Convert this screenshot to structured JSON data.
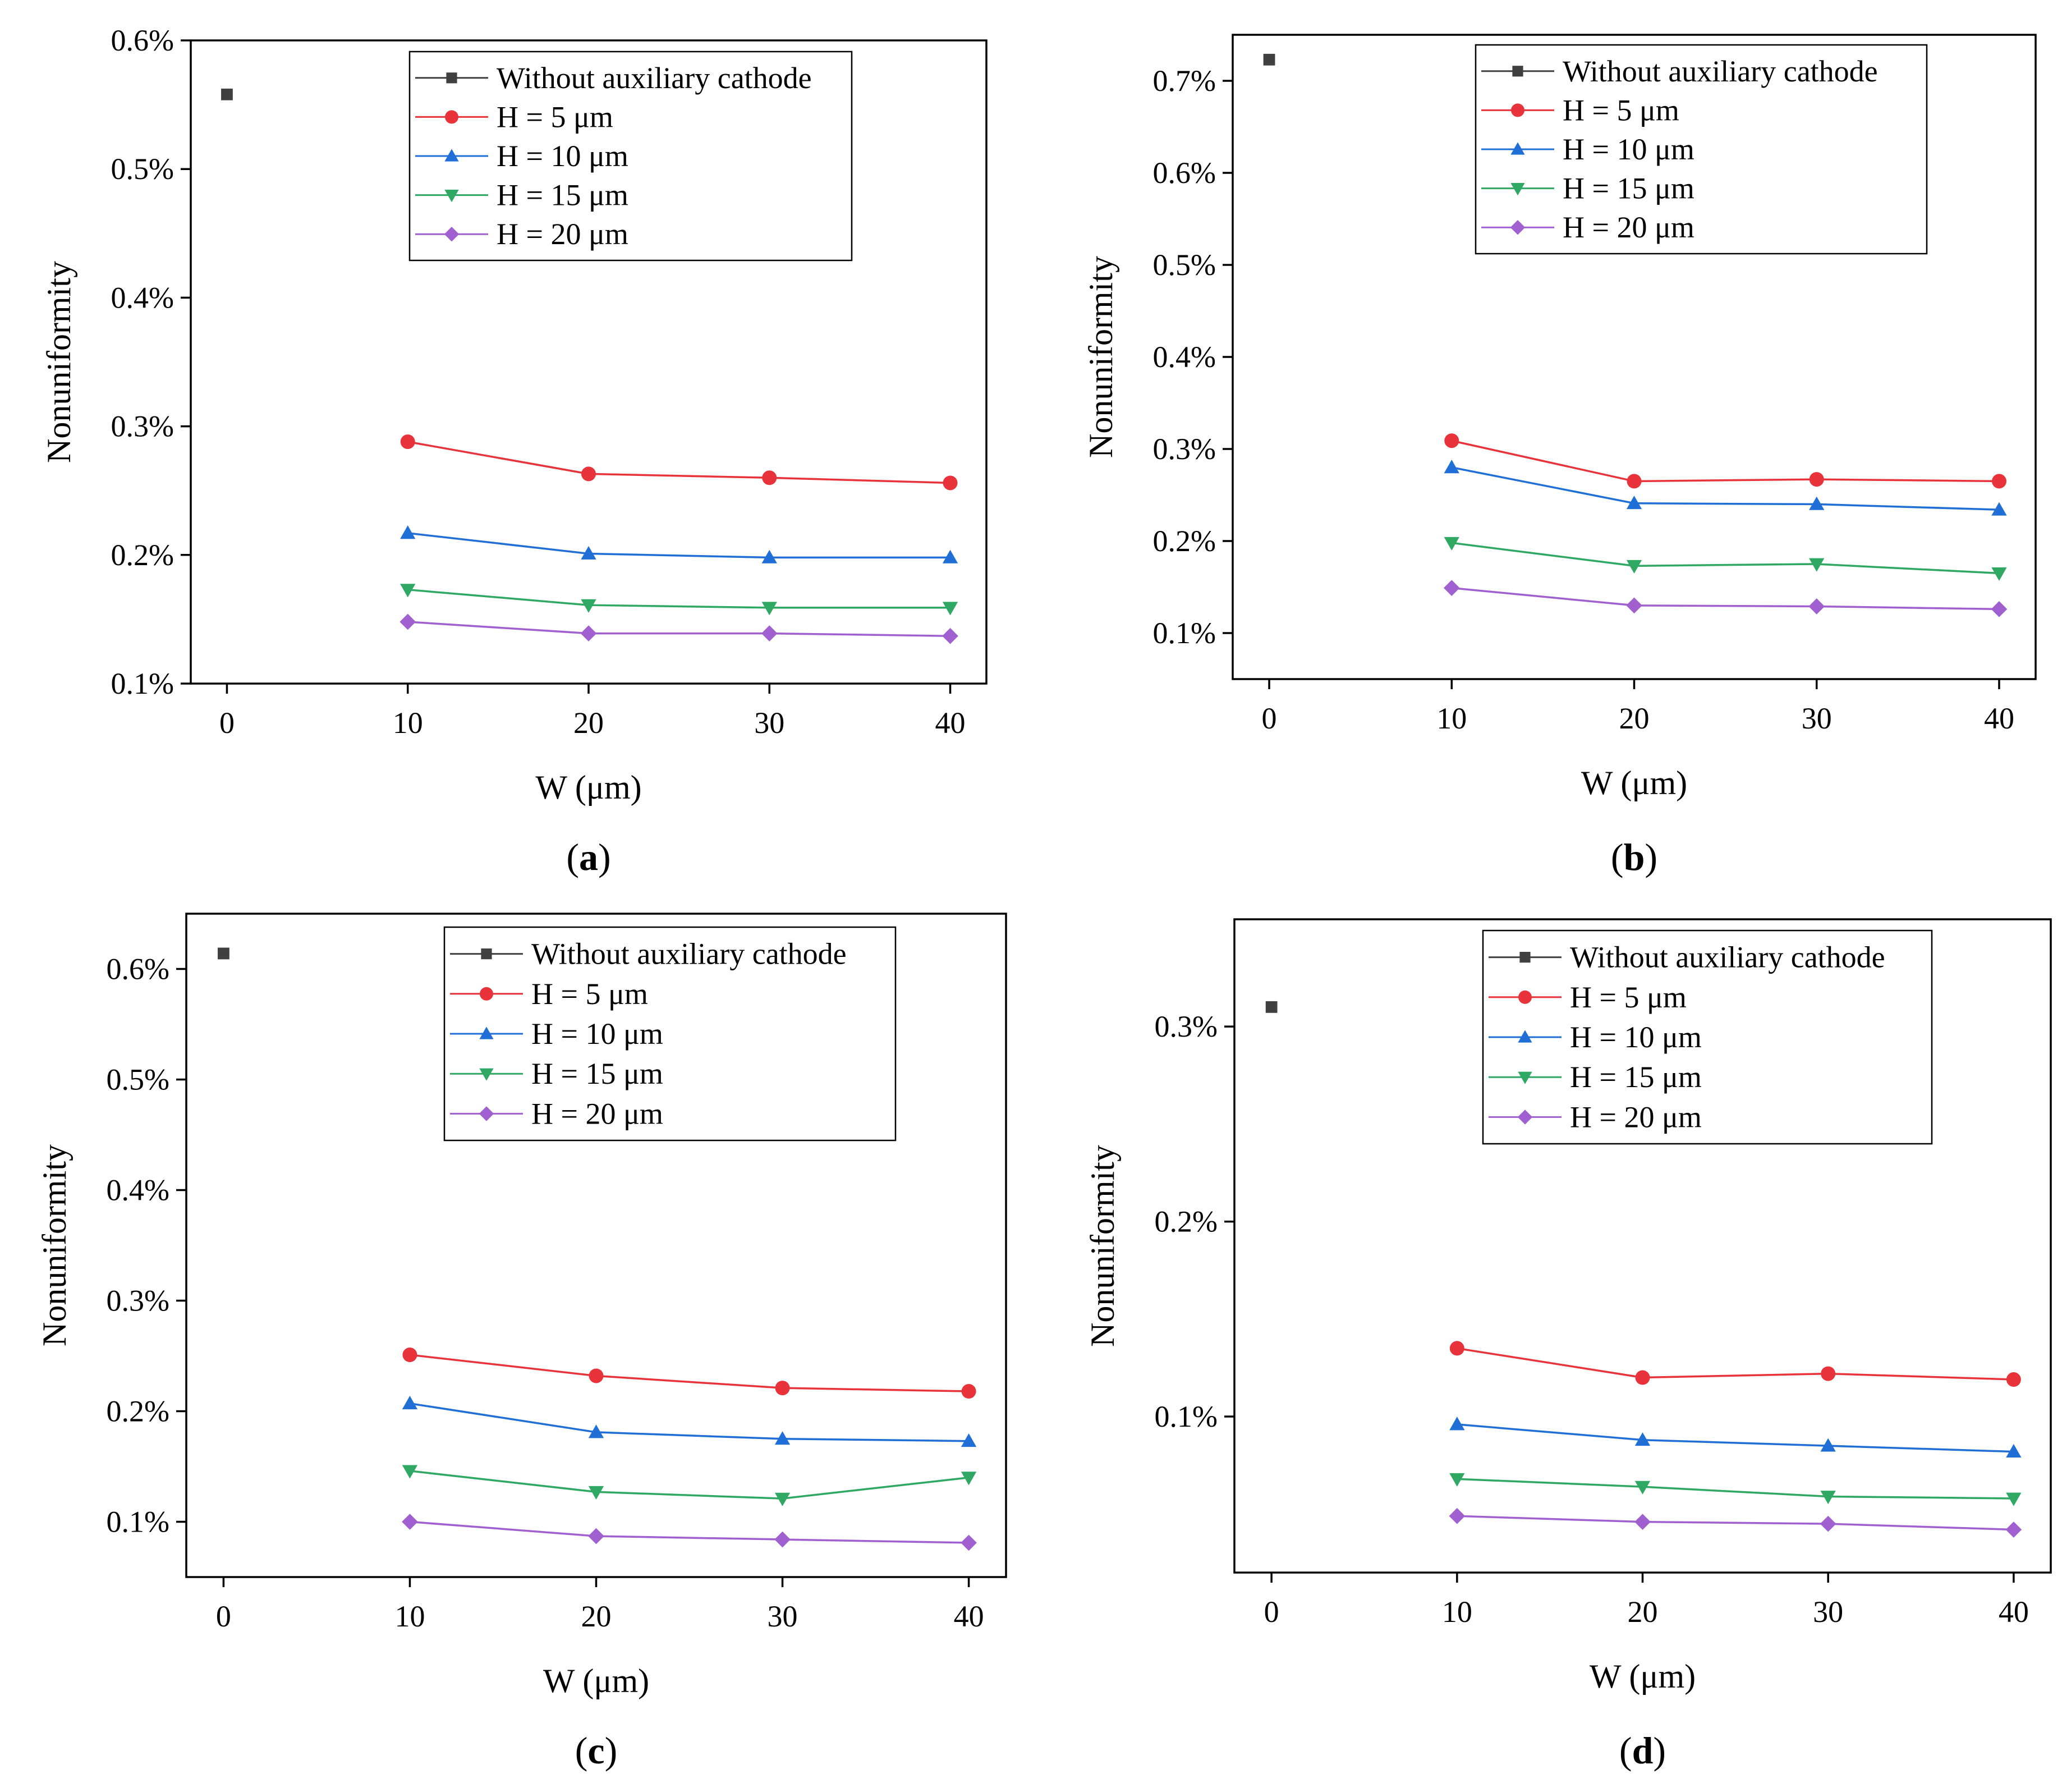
{
  "chart_data": [
    {
      "type": "line",
      "panel_label": "a",
      "xlabel": "W (μm)",
      "ylabel": "Nonuniformity",
      "xlim": [
        -2,
        42
      ],
      "ylim": [
        0.1,
        0.6
      ],
      "x_ticks": [
        "0",
        "10",
        "20",
        "30",
        "40"
      ],
      "y_ticks": [
        "0.1%",
        "0.2%",
        "0.3%",
        "0.4%",
        "0.5%",
        "0.6%"
      ],
      "legend_position": "top-right",
      "series": [
        {
          "name": "Without auxiliary cathode",
          "marker": "square",
          "color": "#404040",
          "x": [
            0
          ],
          "values": [
            0.558
          ]
        },
        {
          "name": "H = 5 μm",
          "marker": "circle",
          "color": "#e8333a",
          "x": [
            10,
            20,
            30,
            40
          ],
          "values": [
            0.288,
            0.263,
            0.26,
            0.256
          ]
        },
        {
          "name": "H = 10 μm",
          "marker": "triangle-up",
          "color": "#1f6fd6",
          "x": [
            10,
            20,
            30,
            40
          ],
          "values": [
            0.217,
            0.201,
            0.198,
            0.198
          ]
        },
        {
          "name": "H = 15 μm",
          "marker": "triangle-down",
          "color": "#2ea862",
          "x": [
            10,
            20,
            30,
            40
          ],
          "values": [
            0.173,
            0.161,
            0.159,
            0.159
          ]
        },
        {
          "name": "H = 20 μm",
          "marker": "diamond",
          "color": "#a060d0",
          "x": [
            10,
            20,
            30,
            40
          ],
          "values": [
            0.148,
            0.139,
            0.139,
            0.137
          ]
        }
      ]
    },
    {
      "type": "line",
      "panel_label": "b",
      "xlabel": "W (μm)",
      "ylabel": "Nonuniformity",
      "xlim": [
        -2,
        42
      ],
      "ylim": [
        0.05,
        0.75
      ],
      "x_ticks": [
        "0",
        "10",
        "20",
        "30",
        "40"
      ],
      "y_ticks": [
        "0.1%",
        "0.2%",
        "0.3%",
        "0.4%",
        "0.5%",
        "0.6%",
        "0.7%"
      ],
      "legend_position": "top-right",
      "series": [
        {
          "name": "Without auxiliary cathode",
          "marker": "square",
          "color": "#404040",
          "x": [
            0
          ],
          "values": [
            0.723
          ]
        },
        {
          "name": "H = 5 μm",
          "marker": "circle",
          "color": "#e8333a",
          "x": [
            10,
            20,
            30,
            40
          ],
          "values": [
            0.309,
            0.265,
            0.267,
            0.265
          ]
        },
        {
          "name": "H = 10 μm",
          "marker": "triangle-up",
          "color": "#1f6fd6",
          "x": [
            10,
            20,
            30,
            40
          ],
          "values": [
            0.28,
            0.241,
            0.24,
            0.234
          ]
        },
        {
          "name": "H = 15 μm",
          "marker": "triangle-down",
          "color": "#2ea862",
          "x": [
            10,
            20,
            30,
            40
          ],
          "values": [
            0.198,
            0.173,
            0.175,
            0.165
          ]
        },
        {
          "name": "H = 20 μm",
          "marker": "diamond",
          "color": "#a060d0",
          "x": [
            10,
            20,
            30,
            40
          ],
          "values": [
            0.149,
            0.13,
            0.129,
            0.126
          ]
        }
      ]
    },
    {
      "type": "line",
      "panel_label": "c",
      "xlabel": "W (μm)",
      "ylabel": "Nonuniformity",
      "xlim": [
        -2,
        42
      ],
      "ylim": [
        0.05,
        0.65
      ],
      "x_ticks": [
        "0",
        "10",
        "20",
        "30",
        "40"
      ],
      "y_ticks": [
        "0.1%",
        "0.2%",
        "0.3%",
        "0.4%",
        "0.5%",
        "0.6%"
      ],
      "legend_position": "top-right",
      "series": [
        {
          "name": "Without auxiliary cathode",
          "marker": "square",
          "color": "#404040",
          "x": [
            0
          ],
          "values": [
            0.614
          ]
        },
        {
          "name": "H = 5 μm",
          "marker": "circle",
          "color": "#e8333a",
          "x": [
            10,
            20,
            30,
            40
          ],
          "values": [
            0.251,
            0.232,
            0.221,
            0.218
          ]
        },
        {
          "name": "H = 10 μm",
          "marker": "triangle-up",
          "color": "#1f6fd6",
          "x": [
            10,
            20,
            30,
            40
          ],
          "values": [
            0.207,
            0.181,
            0.175,
            0.173
          ]
        },
        {
          "name": "H = 15 μm",
          "marker": "triangle-down",
          "color": "#2ea862",
          "x": [
            10,
            20,
            30,
            40
          ],
          "values": [
            0.146,
            0.127,
            0.121,
            0.14
          ]
        },
        {
          "name": "H = 20 μm",
          "marker": "diamond",
          "color": "#a060d0",
          "x": [
            10,
            20,
            30,
            40
          ],
          "values": [
            0.1,
            0.087,
            0.084,
            0.081
          ]
        }
      ]
    },
    {
      "type": "line",
      "panel_label": "d",
      "xlabel": "W (μm)",
      "ylabel": "Nonuniformity",
      "xlim": [
        -2,
        42
      ],
      "ylim": [
        0.02,
        0.355
      ],
      "x_ticks": [
        "0",
        "10",
        "20",
        "30",
        "40"
      ],
      "y_ticks": [
        "0.1%",
        "0.2%",
        "0.3%"
      ],
      "legend_position": "top-right",
      "series": [
        {
          "name": "Without auxiliary cathode",
          "marker": "square",
          "color": "#404040",
          "x": [
            0
          ],
          "values": [
            0.31
          ]
        },
        {
          "name": "H = 5 μm",
          "marker": "circle",
          "color": "#e8333a",
          "x": [
            10,
            20,
            30,
            40
          ],
          "values": [
            0.135,
            0.12,
            0.122,
            0.119
          ]
        },
        {
          "name": "H = 10 μm",
          "marker": "triangle-up",
          "color": "#1f6fd6",
          "x": [
            10,
            20,
            30,
            40
          ],
          "values": [
            0.096,
            0.088,
            0.085,
            0.082
          ]
        },
        {
          "name": "H = 15 μm",
          "marker": "triangle-down",
          "color": "#2ea862",
          "x": [
            10,
            20,
            30,
            40
          ],
          "values": [
            0.068,
            0.064,
            0.059,
            0.058
          ]
        },
        {
          "name": "H = 20 μm",
          "marker": "diamond",
          "color": "#a060d0",
          "x": [
            10,
            20,
            30,
            40
          ],
          "values": [
            0.049,
            0.046,
            0.045,
            0.042
          ]
        }
      ]
    }
  ]
}
